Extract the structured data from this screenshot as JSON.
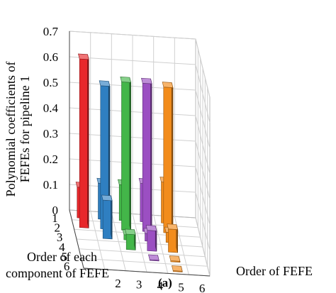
{
  "chart_data": {
    "type": "bar3d",
    "panel_label": "(a)",
    "zlabel_line1": "Polynomial coefficients of",
    "zlabel_line2": "FEFEs for pipeline 1",
    "xlabel": "Order of FEFE",
    "ylabel_line1": "Order of each",
    "ylabel_line2": "component of FEFE",
    "zlim": [
      0,
      0.7
    ],
    "z_ticks": [
      "0",
      "0.1",
      "0.2",
      "0.3",
      "0.4",
      "0.5",
      "0.6",
      "0.7"
    ],
    "x_ticks": [
      "2",
      "3",
      "4",
      "5",
      "6"
    ],
    "y_ticks": [
      "1",
      "2",
      "3",
      "4",
      "5",
      "6"
    ],
    "series": [
      {
        "order_of_fefe": 1,
        "color": "#e8272b",
        "values": [
          0.12,
          0.66,
          0,
          0,
          0,
          0
        ]
      },
      {
        "order_of_fefe": 2,
        "color": "#2f7fc1",
        "values": [
          0.14,
          0.56,
          0.15,
          0,
          0,
          0
        ]
      },
      {
        "order_of_fefe": 3,
        "color": "#43b649",
        "values": [
          0.14,
          0.58,
          0.02,
          0.06,
          0,
          0
        ]
      },
      {
        "order_of_fefe": 4,
        "color": "#9b4fc2",
        "values": [
          0.15,
          0.58,
          0.03,
          0.08,
          0.003,
          0
        ]
      },
      {
        "order_of_fefe": 5,
        "color": "#f28c1c",
        "values": [
          0.16,
          0.57,
          0.04,
          0.09,
          0.004,
          0.003
        ]
      }
    ]
  }
}
